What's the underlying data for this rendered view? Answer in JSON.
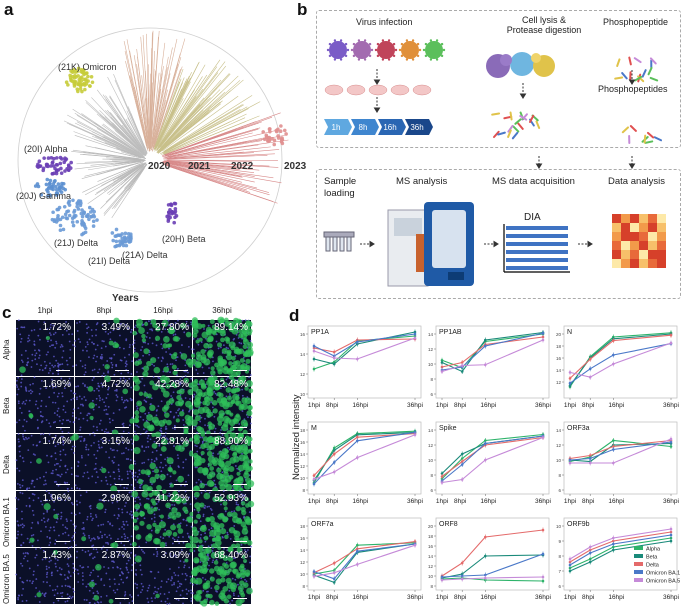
{
  "panels": {
    "a": "a",
    "b": "b",
    "c": "c",
    "d": "d"
  },
  "tree": {
    "years": [
      "2020",
      "2021",
      "2022",
      "2023"
    ],
    "axis_label": "Years",
    "clades": [
      {
        "name": "(21K) Omicron",
        "color": "#c6cc3a"
      },
      {
        "name": "(20I) Alpha",
        "color": "#6a3fb5"
      },
      {
        "name": "(20J) Gamma",
        "color": "#6a3fb5"
      },
      {
        "name": "(21J) Delta",
        "color": "#5b8fd0"
      },
      {
        "name": "(21I) Delta",
        "color": "#5b8fd0"
      },
      {
        "name": "(21A) Delta",
        "color": "#5b8fd0"
      },
      {
        "name": "(20H) Beta",
        "color": "#6a3fb5"
      }
    ]
  },
  "workflow": {
    "virus_infection": "Virus infection",
    "lysis": "Cell lysis &\nProtease digestion",
    "phosphopeptide": "Phosphopeptide",
    "phosphopeptides": "Phosphopeptides",
    "timepoints": [
      "1h",
      "8h",
      "16h",
      "36h"
    ],
    "steps": [
      "Sample\nloading",
      "MS analysis",
      "MS data acquisition",
      "Data analysis"
    ],
    "dia": "DIA"
  },
  "microscopy": {
    "columns": [
      "1hpi",
      "8hpi",
      "16hpi",
      "36hpi"
    ],
    "rows": [
      {
        "label": "Alpha",
        "values": [
          "1.72%",
          "3.49%",
          "27.80%",
          "89.14%"
        ]
      },
      {
        "label": "Beta",
        "values": [
          "1.69%",
          "4.72%",
          "42.28%",
          "82.48%"
        ]
      },
      {
        "label": "Delta",
        "values": [
          "1.74%",
          "3.15%",
          "22.81%",
          "88.90%"
        ]
      },
      {
        "label": "Omicron BA.1",
        "values": [
          "1.96%",
          "2.98%",
          "41.22%",
          "52.93%"
        ]
      },
      {
        "label": "Omicron BA.5",
        "values": [
          "1.43%",
          "2.87%",
          "3.09%",
          "68.40%"
        ]
      }
    ]
  },
  "chart_data": {
    "type": "line",
    "ylabel": "Normalized intensity",
    "x": [
      "1hpi",
      "8hpi",
      "16hpi",
      "36hpi"
    ],
    "x_positions_hours": [
      1,
      8,
      16,
      36
    ],
    "legend": [
      "Alpha",
      "Beta",
      "Delta",
      "Omicron BA.1",
      "Omicron BA.5"
    ],
    "colors": [
      "#2db36a",
      "#1a8a7a",
      "#e46a6a",
      "#4a78c8",
      "#c58ad8"
    ],
    "subplots": [
      {
        "title": "PP1A",
        "ylim": [
          10,
          16
        ],
        "yticks": [
          10,
          12,
          14,
          16
        ],
        "series": [
          [
            12.5,
            13.2,
            15.3,
            15.8
          ],
          [
            13.5,
            13.0,
            15.0,
            16.2
          ],
          [
            14.6,
            14.2,
            15.4,
            15.5
          ],
          [
            14.8,
            13.8,
            15.2,
            16.0
          ],
          [
            14.3,
            13.6,
            13.5,
            15.6
          ]
        ]
      },
      {
        "title": "PP1AB",
        "ylim": [
          6,
          14
        ],
        "yticks": [
          6,
          8,
          10,
          12,
          14
        ],
        "series": [
          [
            10.5,
            9.5,
            13.0,
            14.0
          ],
          [
            10.2,
            9.0,
            13.2,
            14.2
          ],
          [
            9.6,
            10.2,
            12.6,
            13.6
          ],
          [
            9.2,
            9.6,
            12.4,
            14.1
          ],
          [
            9.0,
            9.8,
            9.9,
            13.2
          ]
        ]
      },
      {
        "title": "N",
        "ylim": [
          10,
          20
        ],
        "yticks": [
          12,
          14,
          16,
          18,
          20
        ],
        "series": [
          [
            11.2,
            16.2,
            19.5,
            20.2
          ],
          [
            11.4,
            16.0,
            19.2,
            20.0
          ],
          [
            12.6,
            15.8,
            18.9,
            19.8
          ],
          [
            11.8,
            14.2,
            16.5,
            18.4
          ],
          [
            13.6,
            12.8,
            15.0,
            18.5
          ]
        ]
      },
      {
        "title": "M",
        "ylim": [
          8,
          18
        ],
        "yticks": [
          8,
          10,
          12,
          14,
          16,
          18
        ],
        "series": [
          [
            9.2,
            15.0,
            17.4,
            17.8
          ],
          [
            9.6,
            14.6,
            17.2,
            17.6
          ],
          [
            10.4,
            14.0,
            16.8,
            17.4
          ],
          [
            9.0,
            12.6,
            16.2,
            17.6
          ],
          [
            9.8,
            11.0,
            13.4,
            17.2
          ]
        ]
      },
      {
        "title": "Spike",
        "ylim": [
          6,
          14
        ],
        "yticks": [
          6,
          8,
          10,
          12,
          14
        ],
        "series": [
          [
            7.5,
            10.2,
            12.6,
            13.4
          ],
          [
            8.2,
            10.8,
            12.2,
            13.2
          ],
          [
            7.8,
            9.8,
            12.0,
            13.0
          ],
          [
            7.2,
            9.4,
            12.2,
            13.2
          ],
          [
            7.0,
            7.4,
            10.0,
            13.0
          ]
        ]
      },
      {
        "title": "ORF3a",
        "ylim": [
          6,
          14
        ],
        "yticks": [
          6,
          8,
          10,
          12,
          14
        ],
        "series": [
          [
            9.8,
            10.4,
            12.6,
            11.8
          ],
          [
            10.0,
            9.8,
            12.0,
            12.2
          ],
          [
            10.2,
            10.6,
            11.8,
            12.6
          ],
          [
            10.0,
            10.2,
            11.4,
            12.4
          ],
          [
            9.6,
            9.6,
            9.6,
            12.8
          ]
        ]
      },
      {
        "title": "ORF7a",
        "ylim": [
          8,
          18
        ],
        "yticks": [
          8,
          10,
          12,
          14,
          16,
          18
        ],
        "series": [
          [
            10.0,
            10.6,
            14.8,
            15.2
          ],
          [
            9.8,
            8.6,
            13.6,
            15.0
          ],
          [
            10.2,
            11.8,
            14.2,
            15.4
          ],
          [
            10.4,
            9.2,
            13.8,
            15.0
          ],
          [
            9.6,
            10.2,
            11.6,
            14.8
          ]
        ]
      },
      {
        "title": "ORF8",
        "ylim": [
          8,
          20
        ],
        "yticks": [
          8,
          10,
          12,
          14,
          16,
          18,
          20
        ],
        "series": [
          [
            9.4,
            9.6,
            9.2,
            9.0
          ],
          [
            9.6,
            10.4,
            14.0,
            14.2
          ],
          [
            10.0,
            12.6,
            17.8,
            19.2
          ],
          [
            9.8,
            10.0,
            10.2,
            14.4
          ],
          [
            9.2,
            9.4,
            9.6,
            9.8
          ]
        ]
      },
      {
        "title": "ORF9b",
        "ylim": [
          6,
          10
        ],
        "yticks": [
          6,
          7,
          8,
          9,
          10
        ],
        "series": [
          [
            7.2,
            7.8,
            8.6,
            9.2
          ],
          [
            7.0,
            7.6,
            8.4,
            9.0
          ],
          [
            7.6,
            8.4,
            9.0,
            9.6
          ],
          [
            7.4,
            8.2,
            8.8,
            9.4
          ],
          [
            7.8,
            8.6,
            9.2,
            9.8
          ]
        ]
      }
    ]
  }
}
